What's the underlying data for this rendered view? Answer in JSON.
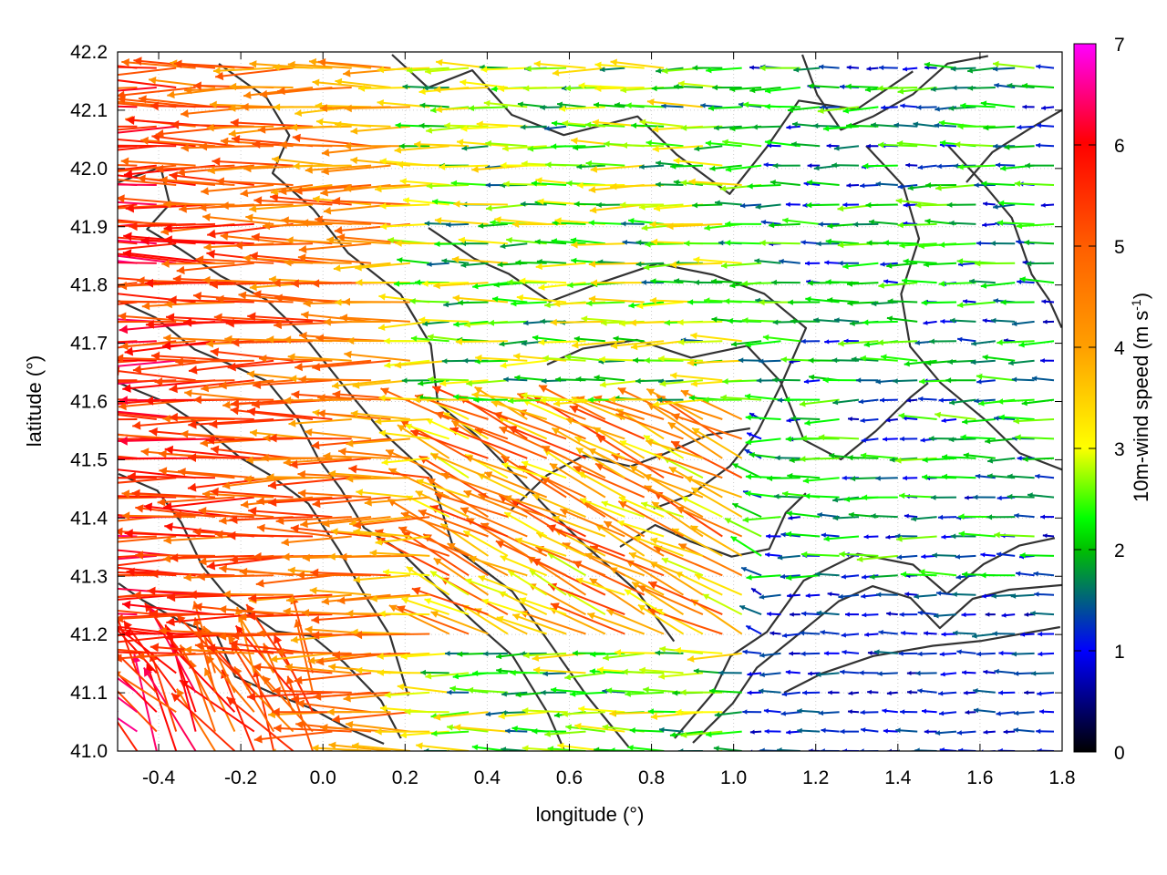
{
  "chart_data": {
    "type": "vector-field",
    "xlabel": "longitude (°)",
    "ylabel": "latitude (°)",
    "colorbar_label": "10m-wind speed (m s",
    "colorbar_label_exp": "-1",
    "colorbar_label_end": ")",
    "xlim": [
      -0.5,
      1.8
    ],
    "ylim": [
      41.0,
      42.2
    ],
    "x_ticks": [
      "-0.4",
      "-0.2",
      "0.0",
      "0.2",
      "0.4",
      "0.6",
      "0.8",
      "1.0",
      "1.2",
      "1.4",
      "1.6",
      "1.8"
    ],
    "x_tick_values": [
      -0.4,
      -0.2,
      0.0,
      0.2,
      0.4,
      0.6,
      0.8,
      1.0,
      1.2,
      1.4,
      1.6,
      1.8
    ],
    "y_ticks": [
      "41.0",
      "41.1",
      "41.2",
      "41.3",
      "41.4",
      "41.5",
      "41.6",
      "41.7",
      "41.8",
      "41.9",
      "42.0",
      "42.1",
      "42.2"
    ],
    "y_tick_values": [
      41.0,
      41.1,
      41.2,
      41.3,
      41.4,
      41.5,
      41.6,
      41.7,
      41.8,
      41.9,
      42.0,
      42.1,
      42.2
    ],
    "colorbar_ticks": [
      "0",
      "1",
      "2",
      "3",
      "4",
      "5",
      "6",
      "7"
    ],
    "colorbar_range": [
      0,
      7
    ],
    "grid": "dotted",
    "colormap": [
      "#000000",
      "#0000ff",
      "#00ff00",
      "#ffff00",
      "#ff8000",
      "#ff0000",
      "#ff00ff"
    ],
    "wind_regions": [
      {
        "lon_range": [
          -0.5,
          0.3
        ],
        "lat_range": [
          41.0,
          42.2
        ],
        "speed_range": [
          3.5,
          6.8
        ],
        "direction_deg": 185,
        "note": "strong westward flow"
      },
      {
        "lon_range": [
          0.3,
          1.0
        ],
        "lat_range": [
          41.6,
          42.2
        ],
        "speed_range": [
          1.5,
          4.0
        ],
        "direction_deg": 180
      },
      {
        "lon_range": [
          0.3,
          1.1
        ],
        "lat_range": [
          41.2,
          41.6
        ],
        "speed_range": [
          2.5,
          6.5
        ],
        "direction_deg": 160
      },
      {
        "lon_range": [
          1.0,
          1.8
        ],
        "lat_range": [
          41.6,
          42.2
        ],
        "speed_range": [
          0.5,
          2.5
        ],
        "direction_deg": 180
      },
      {
        "lon_range": [
          1.0,
          1.8
        ],
        "lat_range": [
          41.0,
          41.3
        ],
        "speed_range": [
          0.6,
          1.6
        ],
        "direction_deg": 180
      }
    ],
    "contours": "terrain elevation isolines (dark grey)"
  }
}
